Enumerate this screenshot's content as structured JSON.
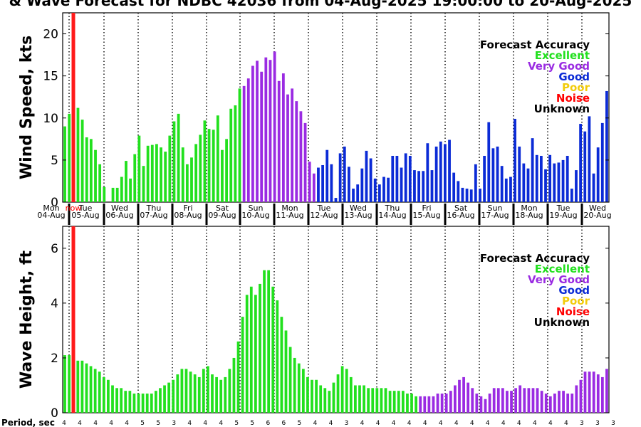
{
  "title": "& Wave Forecast for NDBC 42036 from 04-Aug-2025 19:00:00 to 20-Aug-2025",
  "colors": {
    "excellent": "#22e01e",
    "very_good": "#9a2be2",
    "good": "#0b2bd6",
    "poor": "#f2cc0c",
    "noise": "#ff0000",
    "unknown": "#000000",
    "now_line": "#ff1a1a"
  },
  "now_label": "now",
  "legend": {
    "title": "Forecast Accuracy",
    "items": [
      {
        "label": "Excellent",
        "color_key": "excellent"
      },
      {
        "label": "Very Good",
        "color_key": "very_good"
      },
      {
        "label": "Good",
        "color_key": "good"
      },
      {
        "label": "Poor",
        "color_key": "poor"
      },
      {
        "label": "Noise",
        "color_key": "noise"
      },
      {
        "label": "Unknown",
        "color_key": "unknown"
      }
    ]
  },
  "days": [
    {
      "dow": "Mon",
      "date": "04-Aug"
    },
    {
      "dow": "Tue",
      "date": "05-Aug"
    },
    {
      "dow": "Wed",
      "date": "06-Aug"
    },
    {
      "dow": "Thu",
      "date": "07-Aug"
    },
    {
      "dow": "Fri",
      "date": "08-Aug"
    },
    {
      "dow": "Sat",
      "date": "09-Aug"
    },
    {
      "dow": "Sun",
      "date": "10-Aug"
    },
    {
      "dow": "Mon",
      "date": "11-Aug"
    },
    {
      "dow": "Tue",
      "date": "12-Aug"
    },
    {
      "dow": "Wed",
      "date": "13-Aug"
    },
    {
      "dow": "Thu",
      "date": "14-Aug"
    },
    {
      "dow": "Fri",
      "date": "15-Aug"
    },
    {
      "dow": "Sat",
      "date": "16-Aug"
    },
    {
      "dow": "Sun",
      "date": "17-Aug"
    },
    {
      "dow": "Mon",
      "date": "18-Aug"
    },
    {
      "dow": "Tue",
      "date": "19-Aug"
    },
    {
      "dow": "Wed",
      "date": "20-Aug"
    }
  ],
  "period_label": "Period, sec",
  "period_values": [
    "4",
    "4",
    "4",
    "4",
    "4",
    "5",
    "5",
    "3",
    "4",
    "4",
    "4",
    "5",
    "5",
    "6",
    "6",
    "5",
    "4",
    "4",
    "3",
    "4",
    "4",
    "4",
    "4",
    "4",
    "4",
    "4",
    "4",
    "4",
    "4",
    "4",
    "4",
    "4",
    "4",
    "3",
    "3",
    "3"
  ],
  "chart_data": [
    {
      "type": "bar",
      "name": "wind",
      "ylabel": "Wind Speed, kts",
      "ylim": [
        0,
        22.5
      ],
      "yticks": [
        0,
        5,
        10,
        15,
        20
      ],
      "grid": "vertical dotted lines at day boundaries",
      "legend_position": "top-right",
      "values": [
        [
          9.0,
          "excellent"
        ],
        [
          10.5,
          "excellent"
        ],
        [
          6.5,
          "excellent"
        ],
        [
          11.2,
          "excellent"
        ],
        [
          9.8,
          "excellent"
        ],
        [
          7.7,
          "excellent"
        ],
        [
          7.5,
          "excellent"
        ],
        [
          6.2,
          "excellent"
        ],
        [
          4.5,
          "excellent"
        ],
        [
          1.8,
          "excellent"
        ],
        [
          0.0,
          "excellent"
        ],
        [
          1.7,
          "excellent"
        ],
        [
          1.7,
          "excellent"
        ],
        [
          3.0,
          "excellent"
        ],
        [
          4.9,
          "excellent"
        ],
        [
          2.8,
          "excellent"
        ],
        [
          5.7,
          "excellent"
        ],
        [
          7.9,
          "excellent"
        ],
        [
          4.3,
          "excellent"
        ],
        [
          6.7,
          "excellent"
        ],
        [
          6.8,
          "excellent"
        ],
        [
          6.9,
          "excellent"
        ],
        [
          6.5,
          "excellent"
        ],
        [
          6.0,
          "excellent"
        ],
        [
          7.9,
          "excellent"
        ],
        [
          9.6,
          "excellent"
        ],
        [
          10.5,
          "excellent"
        ],
        [
          6.5,
          "excellent"
        ],
        [
          4.5,
          "excellent"
        ],
        [
          5.3,
          "excellent"
        ],
        [
          6.9,
          "excellent"
        ],
        [
          8.0,
          "excellent"
        ],
        [
          9.7,
          "excellent"
        ],
        [
          8.7,
          "excellent"
        ],
        [
          8.6,
          "excellent"
        ],
        [
          10.3,
          "excellent"
        ],
        [
          6.2,
          "excellent"
        ],
        [
          7.5,
          "excellent"
        ],
        [
          11.1,
          "excellent"
        ],
        [
          11.5,
          "excellent"
        ],
        [
          13.5,
          "excellent"
        ],
        [
          13.8,
          "very_good"
        ],
        [
          14.7,
          "very_good"
        ],
        [
          16.2,
          "very_good"
        ],
        [
          16.8,
          "very_good"
        ],
        [
          15.5,
          "very_good"
        ],
        [
          17.2,
          "very_good"
        ],
        [
          16.9,
          "very_good"
        ],
        [
          17.9,
          "very_good"
        ],
        [
          14.4,
          "very_good"
        ],
        [
          15.3,
          "very_good"
        ],
        [
          12.8,
          "very_good"
        ],
        [
          13.5,
          "very_good"
        ],
        [
          12.0,
          "very_good"
        ],
        [
          10.8,
          "very_good"
        ],
        [
          9.4,
          "very_good"
        ],
        [
          4.8,
          "very_good"
        ],
        [
          3.4,
          "very_good"
        ],
        [
          4.1,
          "good"
        ],
        [
          4.4,
          "good"
        ],
        [
          6.2,
          "good"
        ],
        [
          4.5,
          "good"
        ],
        [
          0.5,
          "good"
        ],
        [
          5.8,
          "good"
        ],
        [
          6.6,
          "good"
        ],
        [
          4.2,
          "good"
        ],
        [
          1.6,
          "good"
        ],
        [
          2.1,
          "good"
        ],
        [
          4.0,
          "good"
        ],
        [
          6.1,
          "good"
        ],
        [
          5.2,
          "good"
        ],
        [
          2.8,
          "good"
        ],
        [
          2.1,
          "good"
        ],
        [
          3.0,
          "good"
        ],
        [
          2.9,
          "good"
        ],
        [
          5.5,
          "good"
        ],
        [
          5.5,
          "good"
        ],
        [
          4.1,
          "good"
        ],
        [
          5.8,
          "good"
        ],
        [
          5.5,
          "good"
        ],
        [
          3.8,
          "good"
        ],
        [
          3.7,
          "good"
        ],
        [
          3.7,
          "good"
        ],
        [
          7.0,
          "good"
        ],
        [
          3.8,
          "good"
        ],
        [
          6.6,
          "good"
        ],
        [
          7.2,
          "good"
        ],
        [
          6.9,
          "good"
        ],
        [
          7.4,
          "good"
        ],
        [
          3.5,
          "good"
        ],
        [
          2.5,
          "good"
        ],
        [
          1.7,
          "good"
        ],
        [
          1.6,
          "good"
        ],
        [
          1.5,
          "good"
        ],
        [
          4.5,
          "good"
        ],
        [
          1.6,
          "good"
        ],
        [
          5.5,
          "good"
        ],
        [
          9.5,
          "good"
        ],
        [
          6.4,
          "good"
        ],
        [
          6.6,
          "good"
        ],
        [
          4.3,
          "good"
        ],
        [
          2.8,
          "good"
        ],
        [
          3.0,
          "good"
        ],
        [
          9.9,
          "good"
        ],
        [
          6.6,
          "good"
        ],
        [
          4.6,
          "good"
        ],
        [
          4.0,
          "good"
        ],
        [
          7.6,
          "good"
        ],
        [
          5.6,
          "good"
        ],
        [
          5.5,
          "good"
        ],
        [
          3.9,
          "good"
        ],
        [
          5.6,
          "good"
        ],
        [
          4.6,
          "good"
        ],
        [
          4.7,
          "good"
        ],
        [
          5.0,
          "good"
        ],
        [
          5.5,
          "good"
        ],
        [
          1.6,
          "good"
        ],
        [
          3.8,
          "good"
        ],
        [
          9.3,
          "good"
        ],
        [
          8.4,
          "good"
        ],
        [
          10.2,
          "good"
        ],
        [
          3.4,
          "good"
        ],
        [
          6.5,
          "good"
        ],
        [
          9.4,
          "good"
        ],
        [
          13.2,
          "good"
        ]
      ]
    },
    {
      "type": "bar",
      "name": "wave",
      "ylabel": "Wave Height, ft",
      "ylim": [
        0,
        6.8
      ],
      "yticks": [
        0,
        2,
        4,
        6
      ],
      "grid": "vertical dotted lines at day boundaries",
      "legend_position": "top-right",
      "values": [
        [
          2.1,
          "excellent"
        ],
        [
          2.1,
          "excellent"
        ],
        [
          2.0,
          "excellent"
        ],
        [
          1.9,
          "excellent"
        ],
        [
          1.9,
          "excellent"
        ],
        [
          1.8,
          "excellent"
        ],
        [
          1.7,
          "excellent"
        ],
        [
          1.6,
          "excellent"
        ],
        [
          1.5,
          "excellent"
        ],
        [
          1.3,
          "excellent"
        ],
        [
          1.2,
          "excellent"
        ],
        [
          1.0,
          "excellent"
        ],
        [
          0.9,
          "excellent"
        ],
        [
          0.9,
          "excellent"
        ],
        [
          0.8,
          "excellent"
        ],
        [
          0.8,
          "excellent"
        ],
        [
          0.7,
          "excellent"
        ],
        [
          0.7,
          "excellent"
        ],
        [
          0.7,
          "excellent"
        ],
        [
          0.7,
          "excellent"
        ],
        [
          0.7,
          "excellent"
        ],
        [
          0.8,
          "excellent"
        ],
        [
          0.9,
          "excellent"
        ],
        [
          1.0,
          "excellent"
        ],
        [
          1.1,
          "excellent"
        ],
        [
          1.2,
          "excellent"
        ],
        [
          1.4,
          "excellent"
        ],
        [
          1.6,
          "excellent"
        ],
        [
          1.6,
          "excellent"
        ],
        [
          1.5,
          "excellent"
        ],
        [
          1.4,
          "excellent"
        ],
        [
          1.3,
          "excellent"
        ],
        [
          1.6,
          "excellent"
        ],
        [
          1.7,
          "excellent"
        ],
        [
          1.4,
          "excellent"
        ],
        [
          1.3,
          "excellent"
        ],
        [
          1.2,
          "excellent"
        ],
        [
          1.3,
          "excellent"
        ],
        [
          1.6,
          "excellent"
        ],
        [
          2.0,
          "excellent"
        ],
        [
          2.6,
          "excellent"
        ],
        [
          3.5,
          "excellent"
        ],
        [
          4.3,
          "excellent"
        ],
        [
          4.6,
          "excellent"
        ],
        [
          4.3,
          "excellent"
        ],
        [
          4.7,
          "excellent"
        ],
        [
          5.2,
          "excellent"
        ],
        [
          5.2,
          "excellent"
        ],
        [
          4.6,
          "excellent"
        ],
        [
          4.1,
          "excellent"
        ],
        [
          3.5,
          "excellent"
        ],
        [
          3.0,
          "excellent"
        ],
        [
          2.4,
          "excellent"
        ],
        [
          2.0,
          "excellent"
        ],
        [
          1.8,
          "excellent"
        ],
        [
          1.6,
          "excellent"
        ],
        [
          1.3,
          "excellent"
        ],
        [
          1.2,
          "excellent"
        ],
        [
          1.2,
          "excellent"
        ],
        [
          1.0,
          "excellent"
        ],
        [
          0.9,
          "excellent"
        ],
        [
          0.8,
          "excellent"
        ],
        [
          1.1,
          "excellent"
        ],
        [
          1.4,
          "excellent"
        ],
        [
          1.7,
          "excellent"
        ],
        [
          1.6,
          "excellent"
        ],
        [
          1.3,
          "excellent"
        ],
        [
          1.0,
          "excellent"
        ],
        [
          1.0,
          "excellent"
        ],
        [
          1.0,
          "excellent"
        ],
        [
          0.9,
          "excellent"
        ],
        [
          0.9,
          "excellent"
        ],
        [
          0.9,
          "excellent"
        ],
        [
          0.9,
          "excellent"
        ],
        [
          0.9,
          "excellent"
        ],
        [
          0.8,
          "excellent"
        ],
        [
          0.8,
          "excellent"
        ],
        [
          0.8,
          "excellent"
        ],
        [
          0.8,
          "excellent"
        ],
        [
          0.7,
          "excellent"
        ],
        [
          0.7,
          "excellent"
        ],
        [
          0.6,
          "excellent"
        ],
        [
          0.6,
          "very_good"
        ],
        [
          0.6,
          "very_good"
        ],
        [
          0.6,
          "very_good"
        ],
        [
          0.6,
          "very_good"
        ],
        [
          0.7,
          "very_good"
        ],
        [
          0.7,
          "very_good"
        ],
        [
          0.7,
          "very_good"
        ],
        [
          0.8,
          "very_good"
        ],
        [
          1.0,
          "very_good"
        ],
        [
          1.2,
          "very_good"
        ],
        [
          1.3,
          "very_good"
        ],
        [
          1.1,
          "very_good"
        ],
        [
          0.9,
          "very_good"
        ],
        [
          0.7,
          "very_good"
        ],
        [
          0.6,
          "very_good"
        ],
        [
          0.5,
          "very_good"
        ],
        [
          0.7,
          "very_good"
        ],
        [
          0.9,
          "very_good"
        ],
        [
          0.9,
          "very_good"
        ],
        [
          0.9,
          "very_good"
        ],
        [
          0.8,
          "very_good"
        ],
        [
          0.8,
          "very_good"
        ],
        [
          0.9,
          "very_good"
        ],
        [
          1.0,
          "very_good"
        ],
        [
          0.9,
          "very_good"
        ],
        [
          0.9,
          "very_good"
        ],
        [
          0.9,
          "very_good"
        ],
        [
          0.9,
          "very_good"
        ],
        [
          0.8,
          "very_good"
        ],
        [
          0.7,
          "very_good"
        ],
        [
          0.6,
          "very_good"
        ],
        [
          0.7,
          "very_good"
        ],
        [
          0.8,
          "very_good"
        ],
        [
          0.8,
          "very_good"
        ],
        [
          0.7,
          "very_good"
        ],
        [
          0.7,
          "very_good"
        ],
        [
          1.0,
          "very_good"
        ],
        [
          1.2,
          "very_good"
        ],
        [
          1.5,
          "very_good"
        ],
        [
          1.5,
          "very_good"
        ],
        [
          1.5,
          "very_good"
        ],
        [
          1.4,
          "very_good"
        ],
        [
          1.3,
          "very_good"
        ],
        [
          1.6,
          "very_good"
        ]
      ]
    }
  ]
}
